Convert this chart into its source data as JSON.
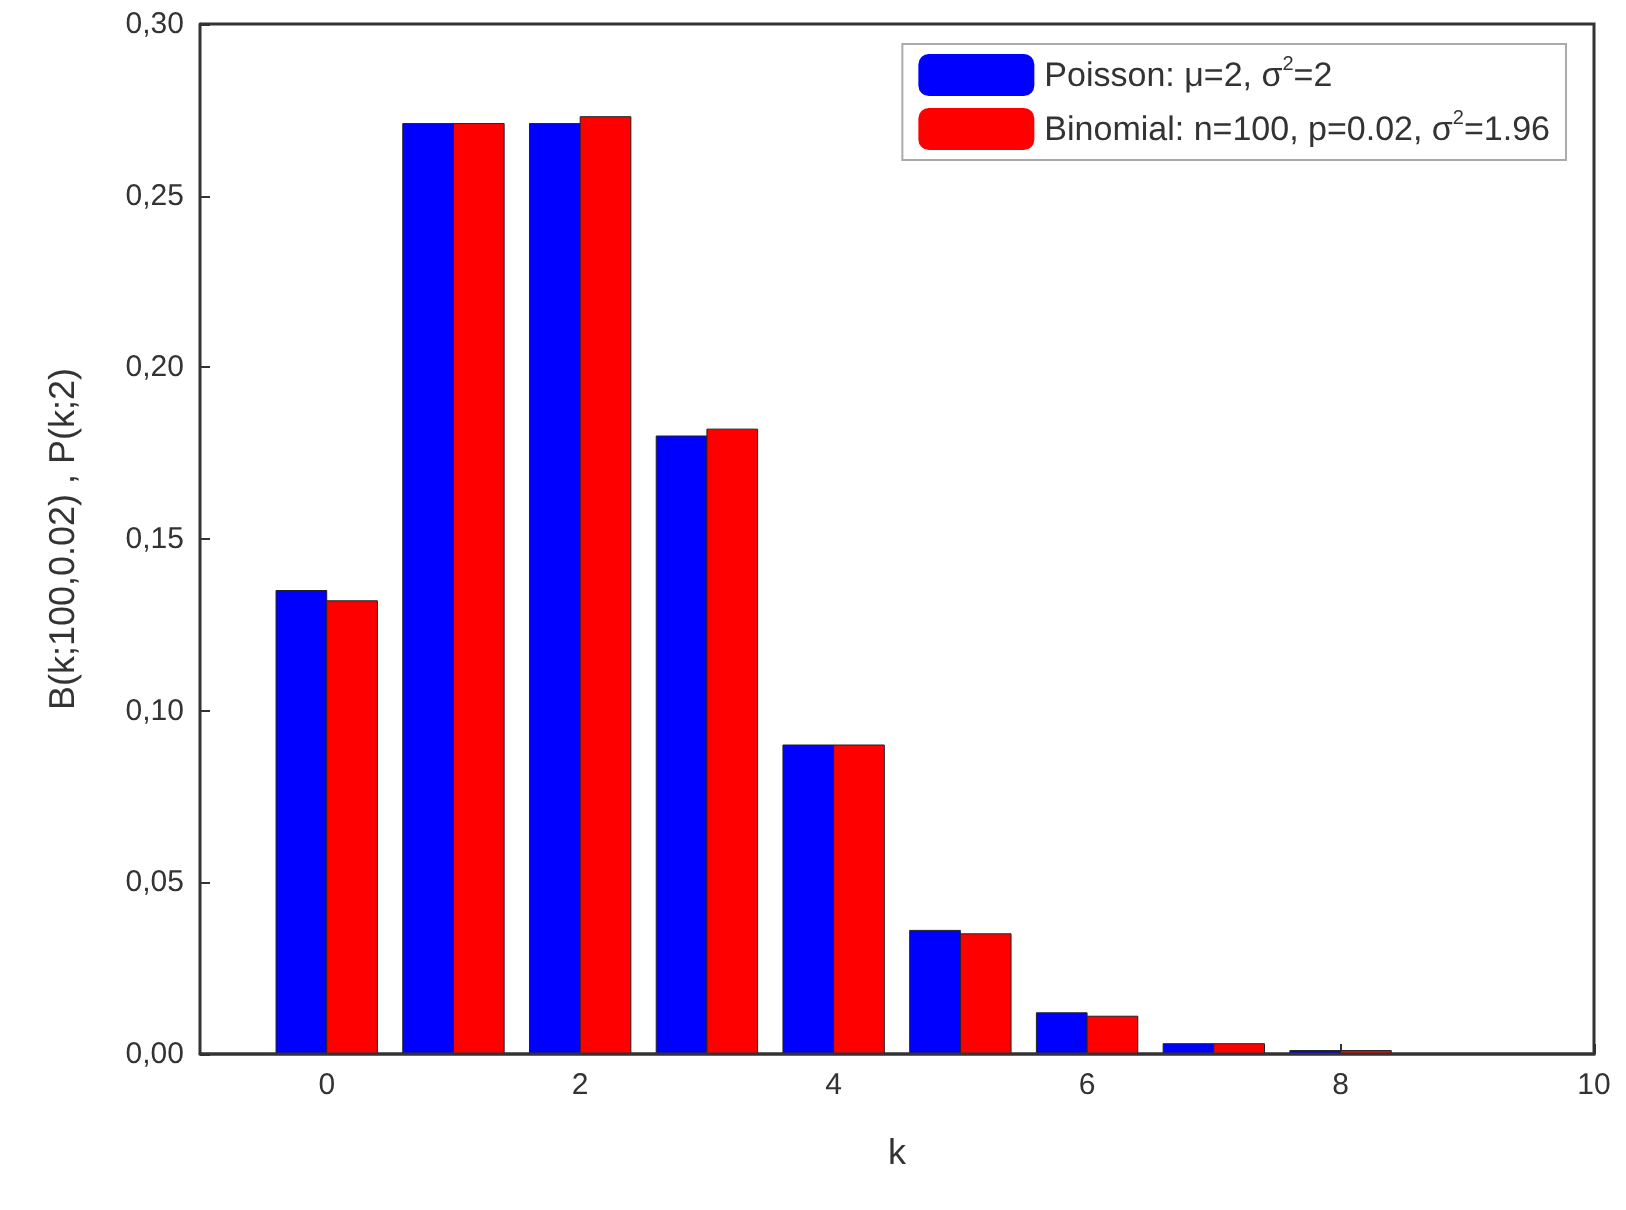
{
  "chart_data": {
    "type": "bar",
    "xlabel": "k",
    "ylabel": "B(k;100,0.02) , P(k;2)",
    "x": [
      0,
      1,
      2,
      3,
      4,
      5,
      6,
      7,
      8
    ],
    "series": [
      {
        "name": "Poisson: μ=2, σ$^{2}$=2",
        "color": "#0000ff",
        "values": [
          0.135,
          0.271,
          0.271,
          0.18,
          0.09,
          0.036,
          0.012,
          0.003,
          0.001
        ]
      },
      {
        "name": "Binomial: n=100, p=0.02, σ$^{2}$=1.96",
        "color": "#ff0000",
        "values": [
          0.132,
          0.271,
          0.273,
          0.182,
          0.09,
          0.035,
          0.011,
          0.003,
          0.001
        ]
      }
    ],
    "xlim": [
      -1,
      10
    ],
    "xticks": [
      0,
      2,
      4,
      6,
      8,
      10
    ],
    "ylim": [
      0,
      0.3
    ],
    "yticks": [
      {
        "value": 0,
        "label": "0,00"
      },
      {
        "value": 0.05,
        "label": "0,05"
      },
      {
        "value": 0.1,
        "label": "0,10"
      },
      {
        "value": 0.15,
        "label": "0,15"
      },
      {
        "value": 0.2,
        "label": "0,20"
      },
      {
        "value": 0.25,
        "label": "0,25"
      },
      {
        "value": 0.3,
        "label": "0,30"
      }
    ],
    "legend": "top right",
    "grid": false
  }
}
